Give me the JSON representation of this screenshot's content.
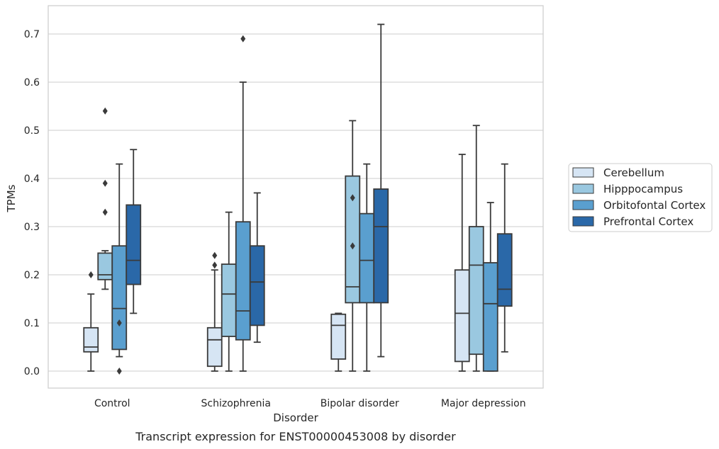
{
  "chart_data": {
    "type": "box",
    "caption": "Transcript expression for ENST00000453008 by disorder",
    "xlabel": "Disorder",
    "ylabel": "TPMs",
    "ylim": [
      -0.035,
      0.76
    ],
    "yticks": [
      0.0,
      0.1,
      0.2,
      0.3,
      0.4,
      0.5,
      0.6,
      0.7
    ],
    "ytick_labels": [
      "0.0",
      "0.1",
      "0.2",
      "0.3",
      "0.4",
      "0.5",
      "0.6",
      "0.7"
    ],
    "grid": "horizontal",
    "legend_position": "right",
    "categories": [
      "Control",
      "Schizophrenia",
      "Bipolar disorder",
      "Major depression"
    ],
    "series": [
      {
        "name": "Cerebellum",
        "color": "#d6e5f4",
        "boxes": [
          {
            "whislo": 0.0,
            "q1": 0.04,
            "med": 0.05,
            "q3": 0.09,
            "whishi": 0.16,
            "fliers": [
              0.2
            ]
          },
          {
            "whislo": 0.0,
            "q1": 0.01,
            "med": 0.065,
            "q3": 0.09,
            "whishi": 0.21,
            "fliers": [
              0.22,
              0.24
            ]
          },
          {
            "whislo": 0.0,
            "q1": 0.025,
            "med": 0.095,
            "q3": 0.118,
            "whishi": 0.12,
            "fliers": []
          },
          {
            "whislo": 0.0,
            "q1": 0.02,
            "med": 0.12,
            "q3": 0.21,
            "whishi": 0.45,
            "fliers": []
          }
        ]
      },
      {
        "name": "Hipppocampus",
        "color": "#9ac8e0",
        "boxes": [
          {
            "whislo": 0.17,
            "q1": 0.19,
            "med": 0.2,
            "q3": 0.245,
            "whishi": 0.25,
            "fliers": [
              0.33,
              0.39,
              0.54
            ]
          },
          {
            "whislo": 0.0,
            "q1": 0.072,
            "med": 0.16,
            "q3": 0.222,
            "whishi": 0.33,
            "fliers": []
          },
          {
            "whislo": 0.0,
            "q1": 0.142,
            "med": 0.175,
            "q3": 0.405,
            "whishi": 0.52,
            "fliers": [
              0.26,
              0.36
            ]
          },
          {
            "whislo": 0.0,
            "q1": 0.035,
            "med": 0.22,
            "q3": 0.3,
            "whishi": 0.51,
            "fliers": []
          }
        ]
      },
      {
        "name": "Orbitofontal Cortex",
        "color": "#5a9fcf",
        "boxes": [
          {
            "whislo": 0.03,
            "q1": 0.045,
            "med": 0.13,
            "q3": 0.26,
            "whishi": 0.43,
            "fliers": [
              0.0,
              0.1
            ]
          },
          {
            "whislo": 0.0,
            "q1": 0.065,
            "med": 0.125,
            "q3": 0.31,
            "whishi": 0.6,
            "fliers": [
              0.69
            ]
          },
          {
            "whislo": 0.0,
            "q1": 0.142,
            "med": 0.23,
            "q3": 0.327,
            "whishi": 0.43,
            "fliers": []
          },
          {
            "whislo": 0.0,
            "q1": 0.0,
            "med": 0.14,
            "q3": 0.225,
            "whishi": 0.35,
            "fliers": []
          }
        ]
      },
      {
        "name": "Prefrontal Cortex",
        "color": "#2a68a8",
        "boxes": [
          {
            "whislo": 0.12,
            "q1": 0.18,
            "med": 0.23,
            "q3": 0.345,
            "whishi": 0.46,
            "fliers": []
          },
          {
            "whislo": 0.06,
            "q1": 0.095,
            "med": 0.185,
            "q3": 0.26,
            "whishi": 0.37,
            "fliers": []
          },
          {
            "whislo": 0.03,
            "q1": 0.142,
            "med": 0.3,
            "q3": 0.378,
            "whishi": 0.72,
            "fliers": []
          },
          {
            "whislo": 0.04,
            "q1": 0.135,
            "med": 0.17,
            "q3": 0.285,
            "whishi": 0.43,
            "fliers": []
          }
        ]
      }
    ]
  }
}
